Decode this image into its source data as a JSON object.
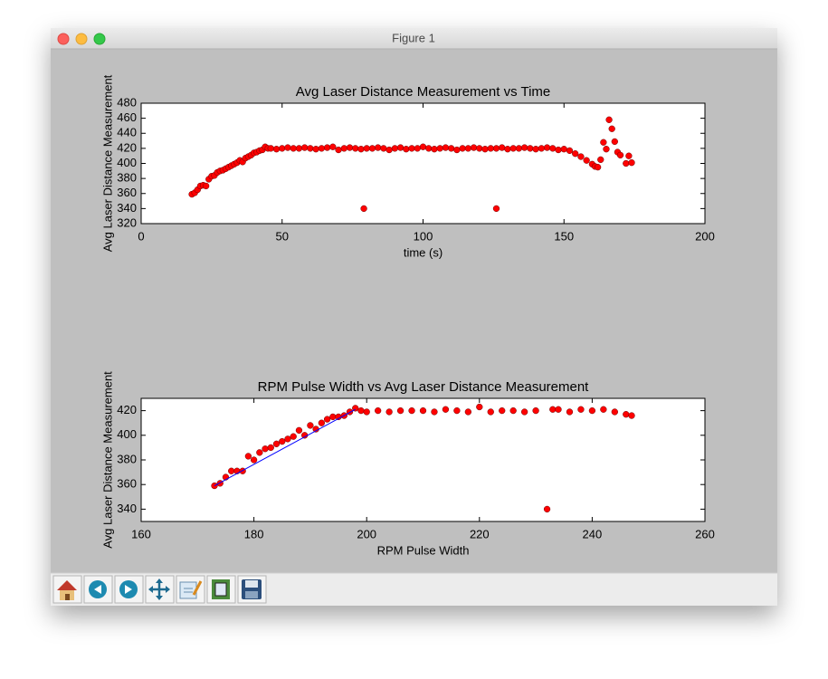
{
  "window": {
    "title": "Figure 1"
  },
  "chart_data": [
    {
      "type": "scatter",
      "title": "Avg Laser Distance Measurement vs Time",
      "x_label": "time (s)",
      "y_label": "Avg Laser Distance Measurement",
      "xlim": [
        0,
        200
      ],
      "xticks": [
        0,
        50,
        100,
        150,
        200
      ],
      "ylim": [
        320,
        480
      ],
      "yticks": [
        320,
        340,
        360,
        380,
        400,
        420,
        440,
        460,
        480
      ],
      "series": [
        {
          "color": "#ff0000",
          "x": [
            18,
            19,
            20,
            21,
            22,
            23,
            24,
            25,
            26,
            27,
            28,
            29,
            30,
            31,
            32,
            33,
            34,
            35,
            36,
            37,
            38,
            39,
            40,
            41,
            42,
            43,
            44,
            45,
            46,
            48,
            50,
            52,
            54,
            56,
            58,
            60,
            62,
            64,
            66,
            68,
            70,
            72,
            74,
            76,
            78,
            80,
            82,
            84,
            86,
            88,
            90,
            92,
            94,
            96,
            98,
            100,
            102,
            104,
            106,
            108,
            110,
            112,
            114,
            116,
            118,
            120,
            122,
            124,
            126,
            128,
            130,
            132,
            134,
            136,
            138,
            140,
            142,
            144,
            146,
            148,
            150,
            152,
            154,
            156,
            158,
            160,
            161,
            162,
            163,
            164,
            165,
            166,
            167,
            168,
            169,
            170,
            172,
            173,
            174,
            79,
            126
          ],
          "values": [
            359,
            361,
            365,
            370,
            371,
            370,
            379,
            383,
            384,
            388,
            390,
            391,
            393,
            395,
            397,
            399,
            401,
            404,
            402,
            407,
            409,
            411,
            414,
            415,
            417,
            418,
            422,
            420,
            420,
            419,
            420,
            421,
            420,
            420,
            421,
            420,
            419,
            420,
            421,
            422,
            418,
            420,
            421,
            420,
            419,
            420,
            420,
            421,
            420,
            418,
            420,
            421,
            419,
            420,
            420,
            422,
            420,
            419,
            420,
            421,
            420,
            418,
            420,
            420,
            421,
            420,
            419,
            420,
            420,
            421,
            419,
            420,
            420,
            421,
            420,
            419,
            420,
            421,
            420,
            418,
            419,
            417,
            413,
            409,
            404,
            399,
            396,
            395,
            405,
            428,
            419,
            458,
            446,
            429,
            415,
            411,
            400,
            410,
            401,
            340,
            340
          ]
        }
      ]
    },
    {
      "type": "scatter",
      "title": "RPM Pulse Width vs Avg Laser Distance Measurement",
      "x_label": "RPM Pulse Width",
      "y_label": "Avg Laser Distance Measurement",
      "xlim": [
        160,
        260
      ],
      "xticks": [
        160,
        180,
        200,
        220,
        240,
        260
      ],
      "ylim": [
        330,
        430
      ],
      "yticks": [
        340,
        360,
        380,
        400,
        420
      ],
      "series": [
        {
          "color": "#ff0000",
          "x": [
            173,
            174,
            175,
            176,
            177,
            178,
            179,
            180,
            181,
            182,
            183,
            184,
            185,
            186,
            187,
            188,
            189,
            190,
            191,
            192,
            193,
            194,
            195,
            196,
            197,
            198,
            199,
            200,
            202,
            204,
            206,
            208,
            210,
            212,
            214,
            216,
            218,
            220,
            222,
            224,
            226,
            228,
            230,
            232,
            233,
            234,
            236,
            238,
            240,
            242,
            244,
            246,
            247
          ],
          "values": [
            359,
            361,
            366,
            371,
            371,
            371,
            383,
            380,
            386,
            389,
            390,
            393,
            395,
            397,
            399,
            404,
            400,
            408,
            405,
            410,
            413,
            415,
            415,
            416,
            419,
            422,
            420,
            419,
            420,
            419,
            420,
            420,
            420,
            419,
            421,
            420,
            419,
            423,
            419,
            420,
            420,
            419,
            420,
            340,
            421,
            421,
            419,
            421,
            420,
            421,
            419,
            417,
            416
          ]
        },
        {
          "color": "#0000ff",
          "mode": "line",
          "x": [
            173,
            198
          ],
          "values": [
            359,
            421
          ]
        }
      ]
    }
  ]
}
